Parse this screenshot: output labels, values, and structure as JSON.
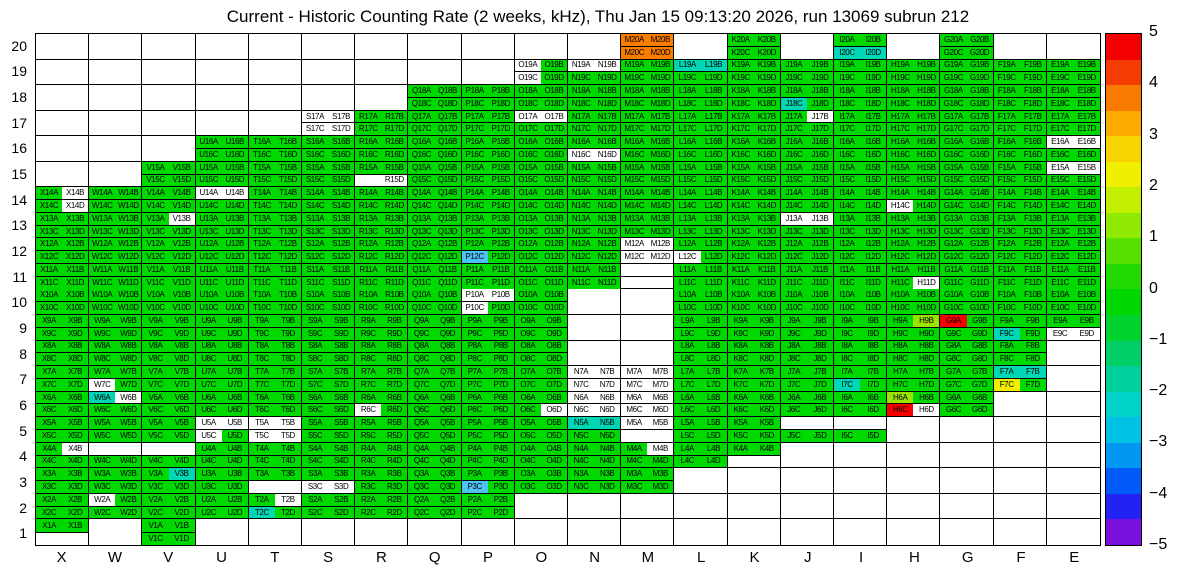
{
  "chart_data": {
    "type": "heatmap",
    "title": "Current - Historic Counting Rate (2 weeks, kHz), Thu Jan 15 09:13:20 2026, run 13069 subrun 212",
    "xlabel": "",
    "ylabel": "",
    "x_categories": [
      "X",
      "W",
      "V",
      "U",
      "T",
      "S",
      "R",
      "Q",
      "P",
      "O",
      "N",
      "M",
      "L",
      "K",
      "J",
      "I",
      "H",
      "G",
      "F",
      "E"
    ],
    "y_categories": [
      "20",
      "19",
      "18",
      "17",
      "16",
      "15",
      "14",
      "13",
      "12",
      "11",
      "10",
      "9",
      "8",
      "7",
      "6",
      "5",
      "4",
      "3",
      "2",
      "1"
    ],
    "cell_channels": [
      "A",
      "B",
      "C",
      "D"
    ],
    "value_range": [
      -5,
      5
    ],
    "grid_on": true,
    "legend_position": "right",
    "colorbar_ticks": [
      "5",
      "4",
      "3",
      "2",
      "1",
      "0",
      "−1",
      "−2",
      "−3",
      "−4",
      "−5"
    ],
    "colorbar_colors": [
      "#f40000",
      "#f43c00",
      "#f97a00",
      "#fbab00",
      "#f7d400",
      "#f1ef00",
      "#c2ef00",
      "#8fe900",
      "#55e000",
      "#23da00",
      "#00d600",
      "#00d22e",
      "#00ce66",
      "#00cf9c",
      "#00d2c9",
      "#00c0e4",
      "#0096f2",
      "#005af8",
      "#2222f2",
      "#7a10dc"
    ],
    "palette": {
      "g": "#00d900",
      "w": "#ffffff",
      "c": "#00d7b4",
      "b": "#4cc4f4",
      "o": "#fb7d00",
      "r": "#f70000",
      "y": "#f2ee00",
      "l": "#9be400"
    },
    "palette_value_map": {
      "g": 0.5,
      "w": null,
      "c": -0.8,
      "b": -1.8,
      "o": 4.0,
      "r": 5.0,
      "y": 2.5,
      "l": 1.8
    },
    "no_data": ".",
    "grid": {
      "20": {
        "M": "oooo",
        "K": "gggg",
        "I": "ggcc",
        "G": "gggg"
      },
      "19": {
        "O": "wgwg",
        "N": "wwgg",
        "M": "gggg",
        "L": "ccgg",
        "K": "gggg",
        "J": "gggg",
        "I": "gggg",
        "H": "gggg",
        "G": "gggg",
        "F": "gggg",
        "E": "gggg"
      },
      "18": {
        "Q": "gggg",
        "P": "gggg",
        "O": "gggg",
        "N": "gggg",
        "M": "gggg",
        "L": "gggg",
        "K": "gggg",
        "J": "ggcg",
        "I": "gggg",
        "H": "gggg",
        "G": "gggg",
        "F": "gggg",
        "E": "gggg"
      },
      "17": {
        "S": "wwww",
        "R": "gggg",
        "Q": "gggg",
        "P": "gggg",
        "O": "wwgg",
        "N": "gggg",
        "M": "gggg",
        "L": "gggg",
        "K": "gggg",
        "J": "gwgg",
        "I": "gggg",
        "H": "gggg",
        "G": "gggg",
        "F": "gggg",
        "E": "gggg"
      },
      "16": {
        "U": "gggg",
        "T": "gggg",
        "S": "gggg",
        "R": "gggg",
        "Q": "gggg",
        "P": "gggg",
        "O": "gggg",
        "N": "ggww",
        "M": "gggg",
        "L": "gggg",
        "K": "gggg",
        "J": "gggg",
        "I": "gggg",
        "H": "gggg",
        "G": "gggg",
        "F": "gggg",
        "E": "wwgg"
      },
      "15": {
        "V": "gggg",
        "U": "gggg",
        "T": "gggg",
        "S": "gggg",
        "R": "gg.w",
        "Q": "gggg",
        "P": "gggg",
        "O": "gggg",
        "N": "gggg",
        "M": "gggg",
        "L": "gggg",
        "K": "gggg",
        "J": "gggg",
        "I": "gggg",
        "H": "gggg",
        "G": "gggg",
        "F": "gggg",
        "E": "wwgg"
      },
      "14": {
        "X": "gwgw",
        "W": "gggg",
        "V": "gggg",
        "U": "wwgg",
        "T": "gggg",
        "S": "gggg",
        "R": "gggg",
        "Q": "gggg",
        "P": "gggg",
        "O": "gggg",
        "N": "gggg",
        "M": "gggg",
        "L": "gggg",
        "K": "gggg",
        "J": "gggg",
        "I": "gggg",
        "H": "ggwg",
        "G": "gggg",
        "F": "gggg",
        "E": "gggg"
      },
      "13": {
        "X": "gggg",
        "W": "gggg",
        "V": "gwgg",
        "U": "gggg",
        "T": "gggg",
        "S": "gggg",
        "R": "gggg",
        "Q": "gggg",
        "P": "gggg",
        "O": "gggg",
        "N": "gggg",
        "M": "gggg",
        "L": "gggg",
        "K": "gggg",
        "J": "wwgg",
        "I": "gggg",
        "H": "gggg",
        "G": "gggg",
        "F": "gggg",
        "E": "gggg"
      },
      "12": {
        "X": "gggg",
        "W": "gggg",
        "V": "gggg",
        "U": "gggg",
        "T": "gggg",
        "S": "gggg",
        "R": "gggg",
        "Q": "gggg",
        "P": "ggbg",
        "O": "gggg",
        "N": "gggg",
        "M": "wwww",
        "L": "ggwg",
        "K": "gggg",
        "J": "gggg",
        "I": "gggg",
        "H": "gggg",
        "G": "gggg",
        "F": "gggg",
        "E": "gggg"
      },
      "11": {
        "X": "gggg",
        "W": "gggg",
        "V": "gggg",
        "U": "gggg",
        "T": "gggg",
        "S": "gggg",
        "R": "gggg",
        "Q": "gggg",
        "P": "gggg",
        "O": "gggg",
        "N": "gggg",
        "M": "....",
        "L": "gggg",
        "K": "gggg",
        "J": "gggg",
        "I": "gggg",
        "H": "gggw",
        "G": "gggg",
        "F": "gggg",
        "E": "gggg"
      },
      "10": {
        "X": "gggg",
        "W": "gggg",
        "V": "gggg",
        "U": "gggg",
        "T": "gggg",
        "S": "gggg",
        "R": "gggg",
        "Q": "gggg",
        "P": "wwwg",
        "O": "gggg",
        "L": "gggg",
        "K": "gggg",
        "J": "gggg",
        "I": "gggg",
        "H": "gggg",
        "G": "gggg",
        "F": "gggg",
        "E": "gggg"
      },
      "9": {
        "X": "gggg",
        "W": "gggg",
        "V": "gggg",
        "U": "gggg",
        "T": "gggg",
        "S": "gggg",
        "R": "gggg",
        "Q": "gggg",
        "P": "gggg",
        "O": "gggg",
        "L": "gggg",
        "K": "gggg",
        "J": "gggg",
        "I": "gggg",
        "H": "glgg",
        "G": "rggg",
        "F": "ggcg",
        "E": "ggww"
      },
      "8": {
        "X": "gggg",
        "W": "gggg",
        "V": "gggg",
        "U": "gggg",
        "T": "gggg",
        "S": "gggg",
        "R": "gggg",
        "Q": "gggg",
        "P": "gggg",
        "O": "gggg",
        "L": "gggg",
        "K": "gggg",
        "J": "gggg",
        "I": "gggg",
        "H": "gggg",
        "G": "gggg",
        "F": "gggg"
      },
      "7": {
        "X": "gggg",
        "W": "ggwg",
        "V": "gggg",
        "U": "gggg",
        "T": "gggg",
        "S": "gggg",
        "R": "gggg",
        "Q": "gggg",
        "P": "gggg",
        "O": "gggg",
        "N": "wwww",
        "M": "wwww",
        "L": "gggg",
        "K": "gggg",
        "J": "gggg",
        "I": "ggcg",
        "H": "gggg",
        "G": "gggg",
        "F": "ccyg"
      },
      "6": {
        "X": "gggg",
        "W": "cwgg",
        "V": "gggg",
        "U": "gggg",
        "T": "gggg",
        "S": "gggg",
        "R": "ggwg",
        "Q": "gggg",
        "P": "gggg",
        "O": "gggw",
        "N": "wwww",
        "M": "wwww",
        "L": "gggg",
        "K": "gggg",
        "J": "gggg",
        "I": "gggg",
        "H": "lgrw",
        "G": "gggg"
      },
      "5": {
        "X": "gggg",
        "W": "gggg",
        "V": "gggg",
        "U": "wwwg",
        "T": "wwww",
        "S": "gggg",
        "R": "gggg",
        "Q": "gggg",
        "P": "gggg",
        "O": "gggg",
        "N": "ccgg",
        "M": "ww..",
        "L": "gggg",
        "K": "gggg",
        "J": "..gg",
        "I": "..gg"
      },
      "4": {
        "X": "gwgg",
        "W": "..gg",
        "V": "..gg",
        "U": "gggg",
        "T": "gggg",
        "S": "gggg",
        "R": "gggg",
        "Q": "gggg",
        "P": "gggg",
        "O": "gggg",
        "N": "gggg",
        "M": "gwgg",
        "L": "gggg",
        "K": "gg.."
      },
      "3": {
        "X": "gggg",
        "W": "gggg",
        "V": "gcgg",
        "U": "gggg",
        "T": "gg..",
        "S": "ggww",
        "R": "gggg",
        "Q": "gggg",
        "P": "ggbg",
        "O": "gggg",
        "N": "gggg",
        "M": "gggg"
      },
      "2": {
        "X": "gggg",
        "W": "wggg",
        "V": "gggg",
        "U": "gggg",
        "T": "gwcg",
        "S": "gggg",
        "R": "gggg",
        "Q": "gggg",
        "P": "gggg"
      },
      "1": {
        "X": "gg..",
        "V": "gggg"
      }
    }
  }
}
